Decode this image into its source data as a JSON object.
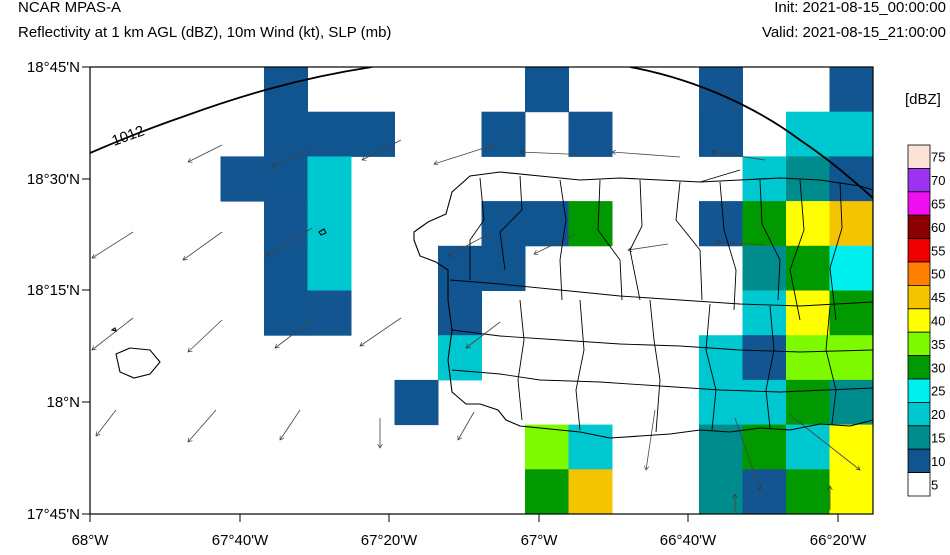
{
  "header": {
    "model": "NCAR MPAS-A",
    "fields": "Reflectivity at 1 km AGL (dBZ), 10m Wind (kt), SLP (mb)",
    "init": "Init: 2021-08-15_00:00:00",
    "valid": "Valid: 2021-08-15_21:00:00"
  },
  "map": {
    "lat_labels": [
      "18°45'N",
      "18°30'N",
      "18°15'N",
      "18°N",
      "17°45'N"
    ],
    "lon_labels": [
      "68°W",
      "67°40'W",
      "67°20'W",
      "67°W",
      "66°40'W",
      "66°20'W"
    ],
    "isobar_label": "1012",
    "grid": {
      "cols": 18,
      "rows": 10,
      "cells_dbz": [
        [
          -1,
          -1,
          -1,
          -1,
          10,
          -1,
          -1,
          -1,
          -1,
          -1,
          10,
          -1,
          -1,
          -1,
          5,
          -1,
          -1,
          5
        ],
        [
          -1,
          -1,
          -1,
          -1,
          10,
          10,
          10,
          -1,
          -1,
          10,
          -1,
          5,
          -1,
          -1,
          10,
          -1,
          20,
          20
        ],
        [
          -1,
          -1,
          -1,
          5,
          10,
          20,
          -1,
          -1,
          -1,
          -1,
          -1,
          -1,
          -1,
          -1,
          -1,
          20,
          15,
          10
        ],
        [
          -1,
          -1,
          -1,
          -1,
          5,
          20,
          -1,
          -1,
          -1,
          10,
          10,
          30,
          -1,
          -1,
          5,
          30,
          40,
          45
        ],
        [
          -1,
          -1,
          -1,
          -1,
          10,
          20,
          -1,
          -1,
          10,
          10,
          -1,
          -1,
          -1,
          -1,
          -1,
          15,
          30,
          25
        ],
        [
          -1,
          -1,
          -1,
          -1,
          10,
          5,
          -1,
          -1,
          5,
          -1,
          -1,
          -1,
          -1,
          -1,
          -1,
          20,
          40,
          30
        ],
        [
          -1,
          -1,
          -1,
          -1,
          -1,
          -1,
          -1,
          -1,
          20,
          -1,
          -1,
          -1,
          -1,
          -1,
          20,
          5,
          35,
          35
        ],
        [
          -1,
          -1,
          -1,
          -1,
          -1,
          -1,
          -1,
          10,
          -1,
          -1,
          -1,
          -1,
          -1,
          -1,
          20,
          20,
          30,
          15
        ],
        [
          -1,
          -1,
          -1,
          -1,
          -1,
          -1,
          -1,
          -1,
          -1,
          -1,
          35,
          20,
          -1,
          -1,
          15,
          30,
          20,
          40
        ],
        [
          -1,
          -1,
          -1,
          -1,
          -1,
          -1,
          -1,
          -1,
          -1,
          -1,
          30,
          45,
          -1,
          -1,
          15,
          5,
          30,
          40
        ]
      ]
    }
  },
  "colorbar": {
    "title": "[dBZ]",
    "labels": [
      "75",
      "70",
      "65",
      "60",
      "55",
      "50",
      "45",
      "40",
      "35",
      "30",
      "25",
      "20",
      "15",
      "10",
      "5"
    ],
    "colors": [
      "#fbe3d8",
      "#9b33f0",
      "#f00ff0",
      "#8b0000",
      "#ee0000",
      "#ff8000",
      "#f5c400",
      "#ffff00",
      "#7dfa00",
      "#009900",
      "#00f0f0",
      "#00c8d0",
      "#008c8c",
      "#115590",
      "#ffffff"
    ],
    "dbz_min": [
      75,
      70,
      65,
      60,
      55,
      50,
      45,
      40,
      35,
      30,
      25,
      20,
      15,
      10,
      5
    ]
  }
}
